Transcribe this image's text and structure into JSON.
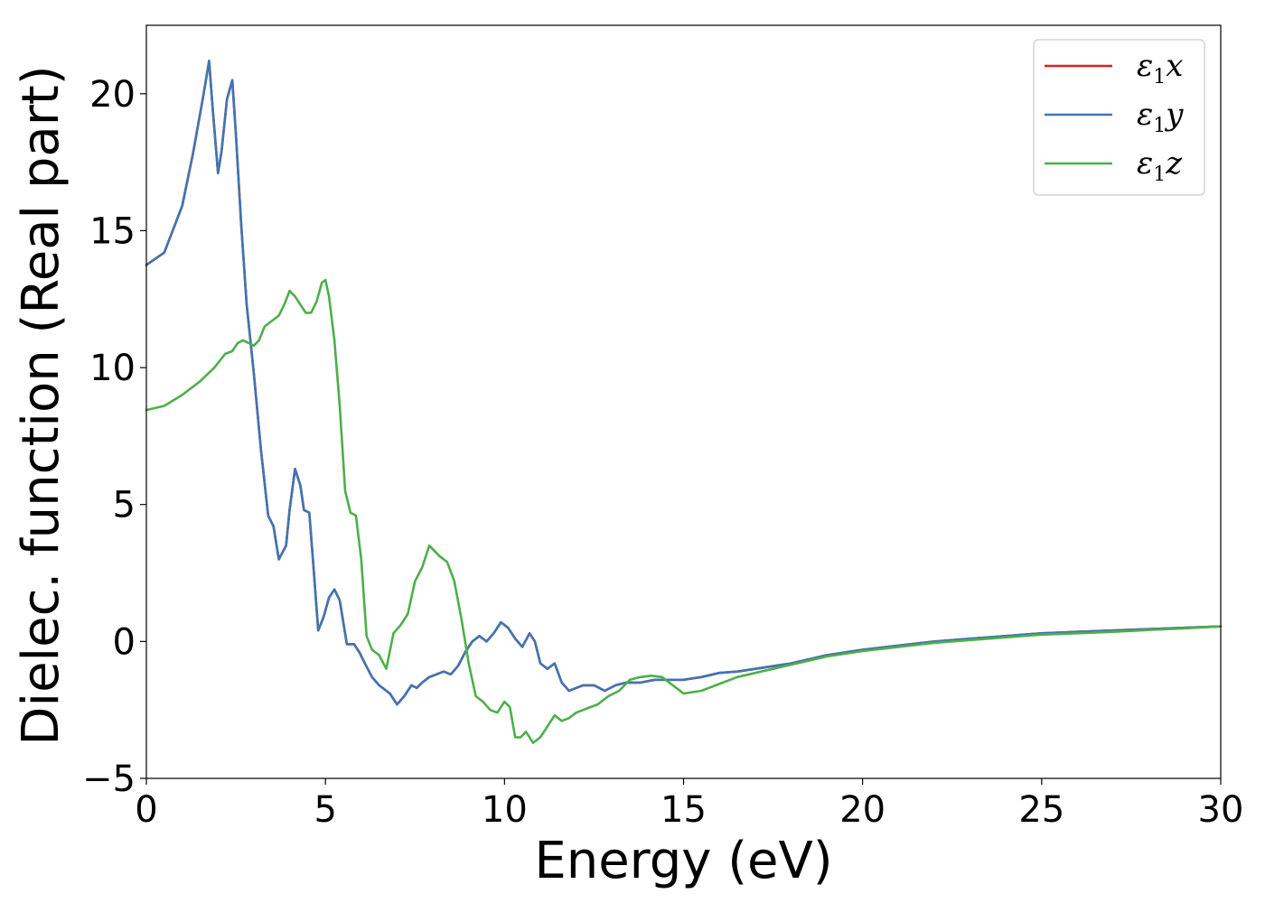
{
  "chart_data": {
    "type": "line",
    "title": "",
    "xlabel": "Energy (eV)",
    "ylabel": "Dielec. function (Real part)",
    "xlim": [
      0,
      30
    ],
    "ylim": [
      -5,
      22.5
    ],
    "xticks": [
      0,
      5,
      10,
      15,
      20,
      25,
      30
    ],
    "yticks": [
      -5,
      0,
      5,
      10,
      15,
      20
    ],
    "xtick_labels": [
      "0",
      "5",
      "10",
      "15",
      "20",
      "25",
      "30"
    ],
    "ytick_labels": [
      "−5",
      "0",
      "5",
      "10",
      "15",
      "20"
    ],
    "grid": false,
    "legend_position": "top-right",
    "series": [
      {
        "name": "ε₁x",
        "label_base": "ε",
        "label_sub": "1",
        "label_tail": "x",
        "color": "#e41a1c",
        "x": [
          0,
          0.5,
          1.0,
          1.3,
          1.6,
          1.75,
          1.85,
          2.0,
          2.1,
          2.25,
          2.4,
          2.5,
          2.65,
          2.8,
          3.0,
          3.2,
          3.4,
          3.55,
          3.7,
          3.9,
          4.0,
          4.15,
          4.3,
          4.4,
          4.55,
          4.65,
          4.8,
          4.95,
          5.1,
          5.25,
          5.4,
          5.6,
          5.8,
          5.95,
          6.1,
          6.3,
          6.5,
          6.8,
          7.0,
          7.2,
          7.4,
          7.55,
          7.7,
          7.9,
          8.1,
          8.3,
          8.5,
          8.7,
          8.9,
          9.1,
          9.3,
          9.5,
          9.7,
          9.9,
          10.1,
          10.3,
          10.5,
          10.7,
          10.85,
          11.0,
          11.2,
          11.4,
          11.6,
          11.8,
          12.0,
          12.2,
          12.5,
          12.8,
          13.1,
          13.4,
          13.8,
          14.2,
          14.6,
          15.0,
          15.5,
          16.0,
          16.5,
          17.0,
          17.5,
          18.0,
          18.5,
          19.0,
          19.5,
          20.0,
          21.0,
          22.0,
          23.0,
          24.0,
          25.0,
          26.0,
          27.0,
          28.0,
          29.0,
          30.0
        ],
        "y": [
          13.75,
          14.2,
          15.9,
          17.8,
          20.0,
          21.2,
          19.5,
          17.1,
          17.9,
          19.8,
          20.5,
          18.5,
          15.2,
          12.3,
          9.8,
          7.0,
          4.6,
          4.2,
          3.0,
          3.5,
          4.8,
          6.3,
          5.7,
          4.8,
          4.7,
          3.0,
          0.4,
          0.9,
          1.6,
          1.9,
          1.5,
          -0.1,
          -0.1,
          -0.4,
          -0.8,
          -1.3,
          -1.6,
          -1.9,
          -2.3,
          -2.0,
          -1.6,
          -1.7,
          -1.5,
          -1.3,
          -1.2,
          -1.1,
          -1.2,
          -0.9,
          -0.4,
          0.0,
          0.2,
          0.0,
          0.3,
          0.7,
          0.5,
          0.1,
          -0.2,
          0.3,
          0.0,
          -0.8,
          -1.0,
          -0.8,
          -1.5,
          -1.8,
          -1.7,
          -1.6,
          -1.6,
          -1.8,
          -1.6,
          -1.5,
          -1.5,
          -1.4,
          -1.4,
          -1.4,
          -1.3,
          -1.15,
          -1.1,
          -1.0,
          -0.9,
          -0.8,
          -0.65,
          -0.5,
          -0.4,
          -0.3,
          -0.15,
          0.0,
          0.1,
          0.2,
          0.3,
          0.35,
          0.4,
          0.45,
          0.5,
          0.55
        ]
      },
      {
        "name": "ε₁y",
        "label_base": "ε",
        "label_sub": "1",
        "label_tail": "y",
        "color": "#3e76b3",
        "x": [
          0,
          0.5,
          1.0,
          1.3,
          1.6,
          1.75,
          1.85,
          2.0,
          2.1,
          2.25,
          2.4,
          2.5,
          2.65,
          2.8,
          3.0,
          3.2,
          3.4,
          3.55,
          3.7,
          3.9,
          4.0,
          4.15,
          4.3,
          4.4,
          4.55,
          4.65,
          4.8,
          4.95,
          5.1,
          5.25,
          5.4,
          5.6,
          5.8,
          5.95,
          6.1,
          6.3,
          6.5,
          6.8,
          7.0,
          7.2,
          7.4,
          7.55,
          7.7,
          7.9,
          8.1,
          8.3,
          8.5,
          8.7,
          8.9,
          9.1,
          9.3,
          9.5,
          9.7,
          9.9,
          10.1,
          10.3,
          10.5,
          10.7,
          10.85,
          11.0,
          11.2,
          11.4,
          11.6,
          11.8,
          12.0,
          12.2,
          12.5,
          12.8,
          13.1,
          13.4,
          13.8,
          14.2,
          14.6,
          15.0,
          15.5,
          16.0,
          16.5,
          17.0,
          17.5,
          18.0,
          18.5,
          19.0,
          19.5,
          20.0,
          21.0,
          22.0,
          23.0,
          24.0,
          25.0,
          26.0,
          27.0,
          28.0,
          29.0,
          30.0
        ],
        "y": [
          13.75,
          14.2,
          15.9,
          17.8,
          20.0,
          21.2,
          19.5,
          17.1,
          17.9,
          19.8,
          20.5,
          18.5,
          15.2,
          12.3,
          9.8,
          7.0,
          4.6,
          4.2,
          3.0,
          3.5,
          4.8,
          6.3,
          5.7,
          4.8,
          4.7,
          3.0,
          0.4,
          0.9,
          1.6,
          1.9,
          1.5,
          -0.1,
          -0.1,
          -0.4,
          -0.8,
          -1.3,
          -1.6,
          -1.9,
          -2.3,
          -2.0,
          -1.6,
          -1.7,
          -1.5,
          -1.3,
          -1.2,
          -1.1,
          -1.2,
          -0.9,
          -0.4,
          0.0,
          0.2,
          0.0,
          0.3,
          0.7,
          0.5,
          0.1,
          -0.2,
          0.3,
          0.0,
          -0.8,
          -1.0,
          -0.8,
          -1.5,
          -1.8,
          -1.7,
          -1.6,
          -1.6,
          -1.8,
          -1.6,
          -1.5,
          -1.5,
          -1.4,
          -1.4,
          -1.4,
          -1.3,
          -1.15,
          -1.1,
          -1.0,
          -0.9,
          -0.8,
          -0.65,
          -0.5,
          -0.4,
          -0.3,
          -0.15,
          0.0,
          0.1,
          0.2,
          0.3,
          0.35,
          0.4,
          0.45,
          0.5,
          0.55
        ]
      },
      {
        "name": "ε₁z",
        "label_base": "ε",
        "label_sub": "1",
        "label_tail": "z",
        "color": "#4daf4a",
        "x": [
          0,
          0.5,
          1.0,
          1.5,
          1.9,
          2.2,
          2.4,
          2.55,
          2.7,
          2.85,
          3.0,
          3.15,
          3.3,
          3.5,
          3.7,
          3.85,
          4.0,
          4.15,
          4.3,
          4.45,
          4.6,
          4.75,
          4.9,
          5.0,
          5.1,
          5.25,
          5.4,
          5.55,
          5.7,
          5.85,
          6.0,
          6.15,
          6.3,
          6.5,
          6.7,
          6.9,
          7.1,
          7.3,
          7.5,
          7.7,
          7.9,
          8.05,
          8.2,
          8.4,
          8.6,
          8.8,
          9.0,
          9.2,
          9.4,
          9.6,
          9.8,
          10.0,
          10.15,
          10.3,
          10.45,
          10.6,
          10.8,
          11.0,
          11.2,
          11.4,
          11.6,
          11.8,
          12.0,
          12.2,
          12.4,
          12.6,
          12.9,
          13.2,
          13.5,
          13.8,
          14.1,
          14.4,
          14.7,
          15.0,
          15.5,
          16.0,
          16.5,
          17.0,
          17.5,
          18.0,
          18.5,
          19.0,
          19.5,
          20.0,
          21.0,
          22.0,
          23.0,
          24.0,
          25.0,
          26.0,
          27.0,
          28.0,
          29.0,
          30.0
        ],
        "y": [
          8.45,
          8.6,
          9.0,
          9.5,
          10.0,
          10.5,
          10.6,
          10.9,
          11.0,
          10.9,
          10.8,
          11.0,
          11.5,
          11.7,
          11.9,
          12.3,
          12.8,
          12.6,
          12.3,
          12.0,
          12.0,
          12.4,
          13.1,
          13.2,
          12.6,
          11.0,
          8.6,
          5.5,
          4.7,
          4.6,
          3.0,
          0.2,
          -0.3,
          -0.5,
          -1.0,
          0.3,
          0.6,
          1.0,
          2.2,
          2.7,
          3.5,
          3.3,
          3.1,
          2.9,
          2.2,
          0.8,
          -0.8,
          -2.0,
          -2.2,
          -2.5,
          -2.6,
          -2.2,
          -2.4,
          -3.5,
          -3.5,
          -3.3,
          -3.7,
          -3.5,
          -3.1,
          -2.7,
          -2.9,
          -2.8,
          -2.6,
          -2.5,
          -2.4,
          -2.3,
          -2.0,
          -1.8,
          -1.4,
          -1.3,
          -1.25,
          -1.3,
          -1.6,
          -1.9,
          -1.8,
          -1.55,
          -1.3,
          -1.15,
          -1.0,
          -0.85,
          -0.7,
          -0.55,
          -0.45,
          -0.35,
          -0.2,
          -0.05,
          0.05,
          0.15,
          0.25,
          0.3,
          0.35,
          0.42,
          0.48,
          0.55
        ]
      }
    ]
  }
}
